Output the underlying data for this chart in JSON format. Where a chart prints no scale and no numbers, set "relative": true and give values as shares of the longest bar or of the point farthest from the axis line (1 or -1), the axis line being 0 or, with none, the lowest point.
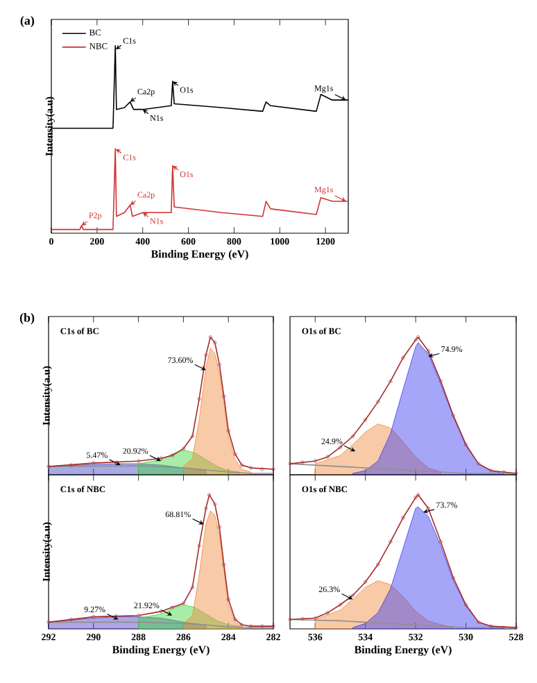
{
  "chart_data": [
    {
      "type": "line",
      "title": "(a)",
      "xlabel": "Binding Energy (eV)",
      "ylabel": "Intensity(a.u)",
      "relative": true,
      "xlim": [
        0,
        1300
      ],
      "xticks": [
        0,
        200,
        400,
        600,
        800,
        1000,
        1200
      ],
      "tick_labels": "x",
      "legend": "top left",
      "series": [
        {
          "name": "BC",
          "color": "#000000",
          "x": [
            0,
            270,
            280,
            285,
            320,
            345,
            360,
            400,
            525,
            531,
            538,
            745,
            925,
            940,
            960,
            1160,
            1180,
            1230,
            1300
          ],
          "values": [
            0.56,
            0.56,
            1.0,
            0.66,
            0.67,
            0.7,
            0.66,
            0.66,
            0.68,
            0.81,
            0.69,
            0.67,
            0.65,
            0.7,
            0.68,
            0.65,
            0.74,
            0.71,
            0.71
          ]
        },
        {
          "name": "NBC",
          "color": "#d03030",
          "x": [
            0,
            125,
            132,
            140,
            270,
            280,
            285,
            320,
            345,
            355,
            400,
            525,
            531,
            538,
            745,
            925,
            940,
            960,
            1160,
            1180,
            1230,
            1300
          ],
          "values": [
            0.02,
            0.02,
            0.04,
            0.02,
            0.02,
            0.45,
            0.09,
            0.11,
            0.15,
            0.09,
            0.11,
            0.11,
            0.36,
            0.14,
            0.11,
            0.09,
            0.17,
            0.13,
            0.1,
            0.19,
            0.17,
            0.17
          ]
        }
      ],
      "annotations": [
        {
          "text": "C1s",
          "x": 282,
          "y": 0.98
        },
        {
          "text": "N1s",
          "x": 400,
          "y": 0.66
        },
        {
          "text": "Ca2p",
          "x": 345,
          "y": 0.7
        },
        {
          "text": "O1s",
          "x": 531,
          "y": 0.81
        },
        {
          "text": "Mg1s",
          "x": 1290,
          "y": 0.71
        },
        {
          "text": "C1s",
          "x": 282,
          "y": 0.45
        },
        {
          "text": "P2p",
          "x": 132,
          "y": 0.04
        },
        {
          "text": "N1s",
          "x": 400,
          "y": 0.11
        },
        {
          "text": "Ca2p",
          "x": 345,
          "y": 0.15
        },
        {
          "text": "O1s",
          "x": 531,
          "y": 0.36
        },
        {
          "text": "Mg1s",
          "x": 1290,
          "y": 0.17
        }
      ]
    },
    {
      "type": "area",
      "title": "(b)",
      "subtitle": "C1s of BC",
      "ylabel": "Intensity(a.u)",
      "relative": true,
      "xlim": [
        292,
        282
      ],
      "xticks": [
        292,
        290,
        288,
        286,
        284,
        282
      ],
      "tick_labels": false,
      "series": [
        {
          "type": "area",
          "color": "#4040c0",
          "x": [
            292,
            290,
            289,
            288,
            287,
            286,
            285
          ],
          "values": [
            0.06,
            0.075,
            0.08,
            0.08,
            0.07,
            0.05,
            0.03
          ]
        },
        {
          "type": "area",
          "color": "#3fd43f",
          "x": [
            288,
            287,
            286.5,
            286,
            285.5,
            285,
            284.5,
            284,
            283.5
          ],
          "values": [
            0.08,
            0.11,
            0.15,
            0.18,
            0.16,
            0.11,
            0.06,
            0.03,
            0.02
          ]
        },
        {
          "type": "area",
          "color": "#f08a3c",
          "x": [
            286,
            285.6,
            285.3,
            285.0,
            284.8,
            284.6,
            284.4,
            284.2,
            284.0,
            283.7,
            283.4,
            283.0
          ],
          "values": [
            0.06,
            0.12,
            0.4,
            0.78,
            0.92,
            0.88,
            0.74,
            0.52,
            0.28,
            0.11,
            0.04,
            0.02
          ]
        },
        {
          "type": "line",
          "color": "#909090",
          "x": [
            292,
            288,
            286,
            285,
            284,
            283,
            282
          ],
          "values": [
            0.06,
            0.065,
            0.05,
            0.035,
            0.02,
            0.01,
            0.01
          ]
        },
        {
          "type": "line",
          "color": "#a52a2a",
          "x": [
            292,
            290,
            288,
            287,
            286.5,
            286,
            285.6,
            285.3,
            285.0,
            284.8,
            284.6,
            284.4,
            284.2,
            284.0,
            283.7,
            283.4,
            283,
            282
          ],
          "values": [
            0.06,
            0.085,
            0.1,
            0.12,
            0.14,
            0.19,
            0.28,
            0.55,
            0.87,
            1.0,
            0.96,
            0.8,
            0.57,
            0.32,
            0.15,
            0.07,
            0.05,
            0.04
          ]
        },
        {
          "type": "scatter",
          "marker": "circle",
          "color": "#b04848",
          "x": [
            292,
            291,
            290,
            289,
            288,
            287,
            286.5,
            286,
            285.6,
            285.3,
            285.0,
            284.8,
            284.6,
            284.4,
            284.2,
            284.0,
            283.7,
            283.4,
            283,
            282.5,
            282
          ],
          "values": [
            0.06,
            0.07,
            0.085,
            0.09,
            0.1,
            0.12,
            0.14,
            0.19,
            0.28,
            0.55,
            0.87,
            1.0,
            0.96,
            0.8,
            0.57,
            0.32,
            0.15,
            0.07,
            0.05,
            0.04,
            0.04
          ]
        }
      ],
      "annotations": [
        {
          "text": "73.60%",
          "x": 285.0,
          "y": 0.76
        },
        {
          "text": "20.92%",
          "x": 287.0,
          "y": 0.1
        },
        {
          "text": "5.47%",
          "x": 288.8,
          "y": 0.07
        }
      ]
    },
    {
      "type": "area",
      "subtitle": "O1s of  BC",
      "relative": true,
      "xlim": [
        537,
        528
      ],
      "xticks": [
        536,
        534,
        532,
        530,
        528
      ],
      "tick_labels": false,
      "series": [
        {
          "type": "area",
          "color": "#f08a3c",
          "x": [
            536,
            535,
            534.5,
            534,
            533.5,
            533,
            532.5,
            532,
            531.5,
            531
          ],
          "values": [
            0.08,
            0.14,
            0.22,
            0.31,
            0.37,
            0.34,
            0.24,
            0.13,
            0.05,
            0.02
          ]
        },
        {
          "type": "area",
          "color": "#3a3af0",
          "x": [
            534.5,
            534,
            533.5,
            533,
            532.5,
            532,
            531.9,
            531.5,
            531,
            530.5,
            530,
            529.5,
            529,
            528.5
          ],
          "values": [
            0.01,
            0.03,
            0.1,
            0.3,
            0.62,
            0.93,
            0.96,
            0.88,
            0.66,
            0.42,
            0.21,
            0.08,
            0.03,
            0.01
          ]
        },
        {
          "type": "line",
          "color": "#909090",
          "x": [
            537,
            536,
            535,
            534,
            533,
            532,
            531,
            530,
            528
          ],
          "values": [
            0.08,
            0.07,
            0.06,
            0.05,
            0.04,
            0.03,
            0.02,
            0.01,
            0.01
          ]
        },
        {
          "type": "line",
          "color": "#a52a2a",
          "x": [
            537,
            536,
            535.5,
            535,
            534.5,
            534,
            533.5,
            533,
            532.5,
            532,
            531.9,
            531.5,
            531,
            530.5,
            530,
            529.5,
            529,
            528.5,
            528
          ],
          "values": [
            0.08,
            0.1,
            0.13,
            0.2,
            0.28,
            0.4,
            0.53,
            0.68,
            0.85,
            0.98,
            1.0,
            0.9,
            0.68,
            0.43,
            0.22,
            0.08,
            0.03,
            0.02,
            0.01
          ]
        },
        {
          "type": "scatter",
          "marker": "circle",
          "color": "#b04848",
          "x": [
            537,
            536.5,
            536,
            535.5,
            535,
            534.5,
            534,
            533.5,
            533,
            532.5,
            532,
            531.9,
            531.5,
            531,
            530.5,
            530,
            529.5,
            529,
            528.5,
            528
          ],
          "values": [
            0.08,
            0.09,
            0.1,
            0.13,
            0.2,
            0.28,
            0.4,
            0.53,
            0.68,
            0.85,
            0.98,
            1.0,
            0.9,
            0.68,
            0.43,
            0.22,
            0.08,
            0.03,
            0.02,
            0.01
          ]
        }
      ],
      "annotations": [
        {
          "text": "74.9%",
          "x": 531.5,
          "y": 0.86
        },
        {
          "text": "24.9%",
          "x": 534.4,
          "y": 0.17
        }
      ]
    },
    {
      "type": "area",
      "subtitle": "C1s of NBC",
      "xlabel": "Binding Energy (eV)",
      "ylabel": "Intensity(a.u)",
      "relative": true,
      "xlim": [
        292,
        282
      ],
      "xticks": [
        292,
        290,
        288,
        286,
        284,
        282
      ],
      "tick_labels": "x",
      "series": [
        {
          "type": "area",
          "color": "#4a3cc0",
          "x": [
            292,
            290,
            289,
            288,
            287,
            286,
            285
          ],
          "values": [
            0.05,
            0.08,
            0.09,
            0.09,
            0.08,
            0.05,
            0.03
          ]
        },
        {
          "type": "area",
          "color": "#3fd43f",
          "x": [
            288,
            287,
            286.5,
            286,
            285.5,
            285,
            284.5,
            284,
            283.5
          ],
          "values": [
            0.08,
            0.11,
            0.15,
            0.18,
            0.16,
            0.11,
            0.06,
            0.03,
            0.02
          ]
        },
        {
          "type": "area",
          "color": "#f08a3c",
          "x": [
            286,
            285.6,
            285.3,
            285.0,
            284.8,
            284.6,
            284.4,
            284.2,
            284.0,
            283.7,
            283.4
          ],
          "values": [
            0.04,
            0.1,
            0.4,
            0.78,
            0.88,
            0.85,
            0.7,
            0.44,
            0.18,
            0.05,
            0.02
          ]
        },
        {
          "type": "line",
          "color": "#909090",
          "x": [
            292,
            288,
            286,
            285,
            284,
            283,
            282
          ],
          "values": [
            0.05,
            0.05,
            0.04,
            0.03,
            0.015,
            0.01,
            0.01
          ]
        },
        {
          "type": "line",
          "color": "#a52a2a",
          "x": [
            292,
            290,
            288,
            287,
            286.5,
            286,
            285.6,
            285.3,
            285.0,
            284.85,
            284.6,
            284.4,
            284.2,
            284.0,
            283.7,
            283.4,
            283,
            282
          ],
          "values": [
            0.05,
            0.09,
            0.1,
            0.13,
            0.16,
            0.19,
            0.31,
            0.62,
            0.9,
            1.0,
            0.93,
            0.76,
            0.48,
            0.22,
            0.07,
            0.03,
            0.02,
            0.02
          ]
        },
        {
          "type": "scatter",
          "marker": "circle",
          "color": "#b04848",
          "x": [
            292,
            291,
            290,
            289,
            288,
            287,
            286.5,
            286,
            285.6,
            285.3,
            285.0,
            284.85,
            284.6,
            284.4,
            284.2,
            284.0,
            283.7,
            283.4,
            283,
            282.5,
            282
          ],
          "values": [
            0.05,
            0.07,
            0.09,
            0.095,
            0.1,
            0.13,
            0.16,
            0.19,
            0.31,
            0.62,
            0.9,
            1.0,
            0.93,
            0.76,
            0.48,
            0.22,
            0.07,
            0.03,
            0.02,
            0.02,
            0.02
          ]
        }
      ],
      "annotations": [
        {
          "text": "68.81%",
          "x": 285.1,
          "y": 0.78
        },
        {
          "text": "21.92%",
          "x": 286.5,
          "y": 0.1
        },
        {
          "text": "9.27%",
          "x": 288.9,
          "y": 0.07
        }
      ]
    },
    {
      "type": "area",
      "subtitle": "O1s of  NBC",
      "xlabel": "Binding Energy (eV)",
      "relative": true,
      "xlim": [
        537,
        528
      ],
      "xticks": [
        536,
        534,
        532,
        530,
        528
      ],
      "tick_labels": "x",
      "series": [
        {
          "type": "area",
          "color": "#f08a3c",
          "x": [
            536,
            535,
            534.5,
            534,
            533.5,
            533,
            532.5,
            532,
            531.5,
            531,
            530.5
          ],
          "values": [
            0.07,
            0.14,
            0.22,
            0.31,
            0.36,
            0.33,
            0.24,
            0.13,
            0.06,
            0.03,
            0.01
          ]
        },
        {
          "type": "area",
          "color": "#3a3af0",
          "x": [
            534.5,
            534,
            533.5,
            533,
            532.5,
            532,
            531.9,
            531.5,
            531,
            530.5,
            530,
            529.5,
            529,
            528.5
          ],
          "values": [
            0.01,
            0.04,
            0.12,
            0.3,
            0.6,
            0.9,
            0.91,
            0.84,
            0.62,
            0.36,
            0.17,
            0.05,
            0.02,
            0.01
          ]
        },
        {
          "type": "line",
          "color": "#909090",
          "x": [
            537,
            536,
            535,
            534,
            533,
            532,
            531,
            530,
            528
          ],
          "values": [
            0.07,
            0.065,
            0.06,
            0.05,
            0.04,
            0.03,
            0.02,
            0.01,
            0.01
          ]
        },
        {
          "type": "line",
          "color": "#a52a2a",
          "x": [
            537,
            536,
            535.5,
            535,
            534.5,
            534,
            533.5,
            533,
            532.5,
            532,
            531.9,
            531.5,
            531,
            530.5,
            530,
            529.5,
            529,
            528
          ],
          "values": [
            0.07,
            0.08,
            0.12,
            0.18,
            0.25,
            0.35,
            0.48,
            0.65,
            0.83,
            0.98,
            1.0,
            0.9,
            0.65,
            0.38,
            0.18,
            0.05,
            0.02,
            0.01
          ]
        },
        {
          "type": "scatter",
          "marker": "circle",
          "color": "#b04848",
          "x": [
            537,
            536.5,
            536,
            535.5,
            535,
            534.5,
            534,
            533.5,
            533,
            532.5,
            532,
            531.9,
            531.5,
            531,
            530.5,
            530,
            529.5,
            529,
            528.5,
            528
          ],
          "values": [
            0.07,
            0.075,
            0.08,
            0.12,
            0.18,
            0.25,
            0.35,
            0.48,
            0.65,
            0.83,
            0.98,
            1.0,
            0.9,
            0.65,
            0.38,
            0.18,
            0.05,
            0.02,
            0.01,
            0.01
          ]
        }
      ],
      "annotations": [
        {
          "text": "73.7%",
          "x": 531.7,
          "y": 0.87
        },
        {
          "text": "26.3%",
          "x": 534.5,
          "y": 0.22
        }
      ]
    }
  ]
}
